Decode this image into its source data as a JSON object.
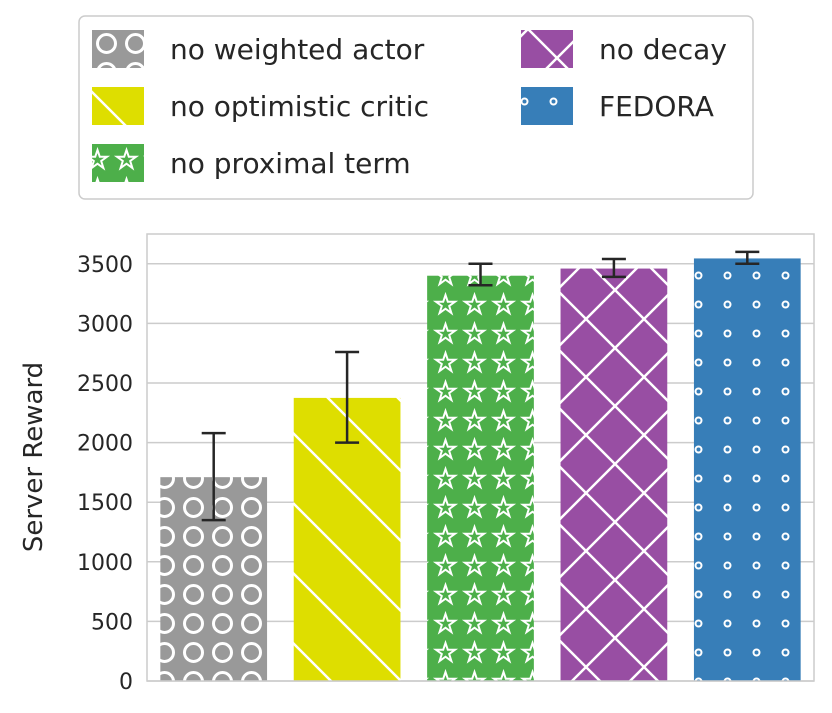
{
  "chart_data": {
    "type": "bar",
    "title": "",
    "xlabel": "",
    "ylabel": "Server Reward",
    "ylim": [
      0,
      3750
    ],
    "yticks": [
      0,
      500,
      1000,
      1500,
      2000,
      2500,
      3000,
      3500
    ],
    "grid": "horizontal",
    "legend_position": "top",
    "series": [
      {
        "name": "no weighted actor",
        "value": 1710,
        "error": [
          1350,
          2080
        ],
        "color": "#999999",
        "pattern": "circles"
      },
      {
        "name": "no optimistic critic",
        "value": 2375,
        "error": [
          2000,
          2760
        ],
        "color": "#dede00",
        "pattern": "diagonal"
      },
      {
        "name": "no proximal term",
        "value": 3400,
        "error": [
          3320,
          3500
        ],
        "color": "#4daf4a",
        "pattern": "stars"
      },
      {
        "name": "no decay",
        "value": 3460,
        "error": [
          3390,
          3540
        ],
        "color": "#984ea3",
        "pattern": "crosshatch"
      },
      {
        "name": "FEDORA",
        "value": 3545,
        "error": [
          3500,
          3600
        ],
        "color": "#377eb8",
        "pattern": "dots"
      }
    ]
  }
}
